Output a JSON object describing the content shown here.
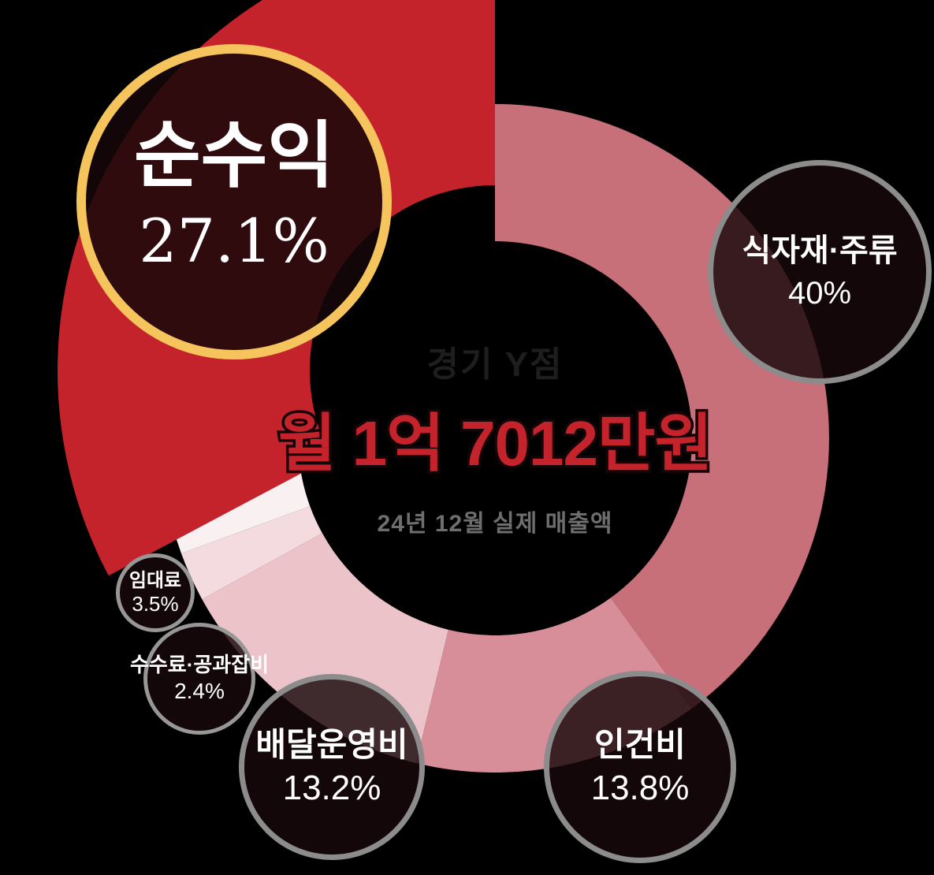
{
  "chart_data": {
    "type": "pie",
    "variant": "donut",
    "title": "경기 Y점",
    "center_value": "월 1억 7012만원",
    "center_caption": "24년 12월 실제 매출액",
    "start_angle_deg": 0,
    "direction": "clockwise",
    "units": "%",
    "segments": [
      {
        "label": "식자재·주류",
        "value": 40,
        "display": "40%",
        "color": "#C7707A",
        "highlighted": false
      },
      {
        "label": "인건비",
        "value": 13.8,
        "display": "13.8%",
        "color": "#D88E98",
        "highlighted": false
      },
      {
        "label": "배달운영비",
        "value": 13.2,
        "display": "13.2%",
        "color": "#EDC3CA",
        "highlighted": false
      },
      {
        "label": "수수료·공과잡비",
        "value": 2.4,
        "display": "2.4%",
        "color": "#F3DBDF",
        "highlighted": false
      },
      {
        "label": "임대료",
        "value": 3.5,
        "display": "3.5%",
        "color": "#F8F0F1",
        "highlighted": false
      },
      {
        "label": "순수익",
        "value": 27.1,
        "display": "27.1%",
        "color": "#C4232C",
        "highlighted": true
      }
    ],
    "legend_position": "none",
    "grid": false
  },
  "colors": {
    "background": "#000000",
    "highlight_ring": "#F5C45C",
    "bubble_ring": "#8C8C8C",
    "bubble_fill": "rgba(24,9,11,0.82)",
    "bubble_text": "#FFFFFF",
    "title_text": "#1E1E1E",
    "value_text": "#C4232C",
    "value_outline": "#140608",
    "caption_text": "#6E6E6E"
  }
}
